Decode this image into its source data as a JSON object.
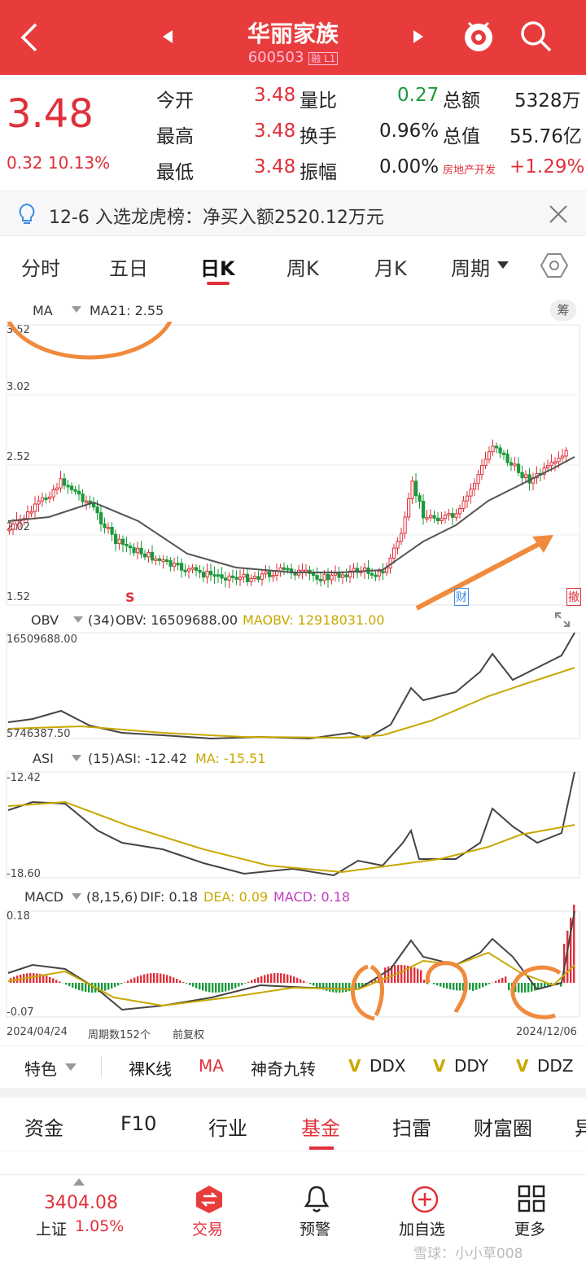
{
  "header": {
    "title": "华丽家族",
    "code": "600503",
    "code_tag": "融 L1"
  },
  "quote": {
    "price": "3.48",
    "change": "0.32",
    "change_pct": "10.13%",
    "rows": [
      {
        "k1": "今开",
        "v1": "3.48",
        "k2": "量比",
        "v2": "0.27",
        "k3": "总额",
        "v3": "5328万"
      },
      {
        "k1": "最高",
        "v1": "3.48",
        "k2": "换手",
        "v2": "0.96%",
        "k3": "总值",
        "v3": "55.76亿"
      },
      {
        "k1": "最低",
        "v1": "3.48",
        "k2": "振幅",
        "v2": "0.00%",
        "k3": "房地产开发",
        "v3": "+1.29%"
      }
    ]
  },
  "news": {
    "text": "12-6 入选龙虎榜：净买入额2520.12万元"
  },
  "tabs": [
    "分时",
    "五日",
    "日K",
    "周K",
    "月K",
    "周期"
  ],
  "active_tab": "日K",
  "ma": {
    "label": "MA",
    "value": "MA21: 2.55",
    "chip_label": "筹"
  },
  "kline": {
    "yticks": [
      "3.52",
      "3.02",
      "2.52",
      "2.02",
      "1.52"
    ],
    "markers": [
      "S",
      "财",
      "撤"
    ]
  },
  "obv": {
    "label": "OBV",
    "params": "(34)",
    "obv": "OBV: 16509688.00",
    "maobv": "MAOBV: 12918031.00",
    "top": "16509688.00",
    "bottom": "5746387.50"
  },
  "asi": {
    "label": "ASI",
    "params": "(15)",
    "asi": "ASI: -12.42",
    "ma": "MA: -15.51",
    "top": "-12.42",
    "bottom": "-18.60"
  },
  "macd": {
    "label": "MACD",
    "params": "(8,15,6)",
    "dif": "DIF: 0.18",
    "dea": "DEA: 0.09",
    "macd": "MACD: 0.18",
    "top": "0.18",
    "bottom": "-0.07"
  },
  "footer_axis": {
    "start": "2024/04/24",
    "count": "周期数152个",
    "adj": "前复权",
    "end": "2024/12/06"
  },
  "indicators": [
    "特色",
    "裸K线",
    "MA",
    "神奇九转",
    "DDX",
    "DDY",
    "DDZ"
  ],
  "subtabs": [
    "资金",
    "F10",
    "行业",
    "基金",
    "扫雷",
    "财富圈",
    "异"
  ],
  "bottom": {
    "index_value": "3404.08",
    "index_name": "上证",
    "index_pct": "1.05%",
    "items": [
      "交易",
      "预警",
      "加自选",
      "更多"
    ]
  },
  "watermark": "雪球：小小草008",
  "colors": {
    "brand": "#e83c3c",
    "up": "#e0303a",
    "down": "#1a9a3a",
    "ma": "#555555",
    "yellow": "#c8a800",
    "purple": "#c03cc0"
  }
}
